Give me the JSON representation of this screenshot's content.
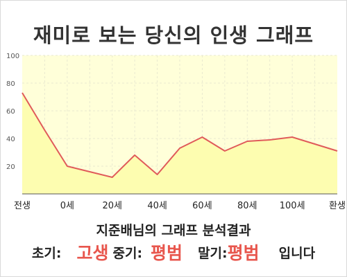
{
  "title": "재미로 보는 당신의 인생 그래프",
  "subtitle": "지준배님의 그래프 분석결과",
  "result": {
    "early_label": "초기:",
    "early_value": "고생",
    "middle_label": "중기:",
    "middle_value": "평범",
    "late_label": "말기:",
    "late_value": "평범",
    "suffix": "입니다"
  },
  "colors": {
    "plot_bg": "#ffffd9",
    "area_fill": "#fdfdb0",
    "line": "#e05a5a",
    "grid": "#e9e9d0",
    "accent_text": "#e8564d"
  },
  "chart_data": {
    "type": "area",
    "categories": [
      "전생",
      "",
      "0세",
      "",
      "20세",
      "",
      "40세",
      "",
      "60세",
      "",
      "80세",
      "",
      "100세",
      "",
      "환생"
    ],
    "values": [
      73,
      46,
      20,
      16,
      12,
      28,
      14,
      33,
      41,
      31,
      38,
      39,
      41,
      36,
      31
    ],
    "x_tick_labels": [
      "전생",
      "0세",
      "20세",
      "40세",
      "60세",
      "80세",
      "100세",
      "환생"
    ],
    "y_ticks": [
      20,
      40,
      60,
      80,
      100
    ],
    "ylim": [
      0,
      100
    ],
    "grid": true,
    "legend": "none"
  }
}
